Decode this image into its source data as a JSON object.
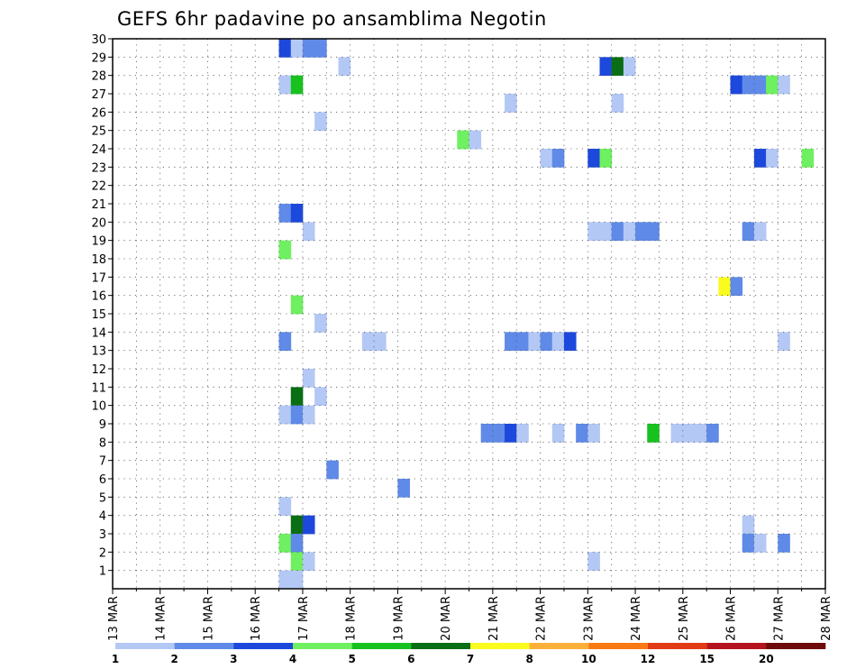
{
  "chart_data": {
    "type": "heatmap",
    "title": "GEFS 6hr padavine po ansamblima Negotin",
    "x_tick_labels": [
      "13 MAR",
      "14 MAR",
      "15 MAR",
      "16 MAR",
      "17 MAR",
      "18 MAR",
      "19 MAR",
      "20 MAR",
      "21 MAR",
      "22 MAR",
      "23 MAR",
      "24 MAR",
      "25 MAR",
      "26 MAR",
      "27 MAR",
      "28 MAR"
    ],
    "x_range_steps": [
      0,
      60
    ],
    "y_tick_labels": [
      "1",
      "2",
      "3",
      "4",
      "5",
      "6",
      "7",
      "8",
      "9",
      "10",
      "11",
      "12",
      "13",
      "14",
      "15",
      "16",
      "17",
      "18",
      "19",
      "20",
      "21",
      "22",
      "23",
      "24",
      "25",
      "26",
      "27",
      "28",
      "29",
      "30"
    ],
    "y_range": [
      0,
      30
    ],
    "grid": true,
    "legend": {
      "placement": "bottom",
      "labels": [
        "1",
        "2",
        "3",
        "4",
        "5",
        "6",
        "7",
        "8",
        "10",
        "12",
        "15",
        "20"
      ],
      "colors": [
        "#b4c8f6",
        "#5f8ae8",
        "#1d48dc",
        "#6ef060",
        "#17c21e",
        "#0a6e14",
        "#fbfb1e",
        "#fbb03a",
        "#f97a14",
        "#e23a14",
        "#b4141e",
        "#6e0a0a"
      ]
    },
    "cells": [
      {
        "m": 29,
        "s": 14,
        "l": 3
      },
      {
        "m": 29,
        "s": 15,
        "l": 1
      },
      {
        "m": 29,
        "s": 16,
        "l": 2
      },
      {
        "m": 29,
        "s": 17,
        "l": 2
      },
      {
        "m": 28,
        "s": 19,
        "l": 1
      },
      {
        "m": 28,
        "s": 41,
        "l": 3
      },
      {
        "m": 28,
        "s": 42,
        "l": 6
      },
      {
        "m": 28,
        "s": 43,
        "l": 1
      },
      {
        "m": 27,
        "s": 14,
        "l": 1
      },
      {
        "m": 27,
        "s": 15,
        "l": 5
      },
      {
        "m": 27,
        "s": 52,
        "l": 3
      },
      {
        "m": 27,
        "s": 53,
        "l": 2
      },
      {
        "m": 27,
        "s": 54,
        "l": 2
      },
      {
        "m": 27,
        "s": 55,
        "l": 4
      },
      {
        "m": 27,
        "s": 56,
        "l": 1
      },
      {
        "m": 26,
        "s": 33,
        "l": 1
      },
      {
        "m": 26,
        "s": 42,
        "l": 1
      },
      {
        "m": 25,
        "s": 17,
        "l": 1
      },
      {
        "m": 24,
        "s": 29,
        "l": 4
      },
      {
        "m": 24,
        "s": 30,
        "l": 1
      },
      {
        "m": 23,
        "s": 36,
        "l": 1
      },
      {
        "m": 23,
        "s": 37,
        "l": 2
      },
      {
        "m": 23,
        "s": 40,
        "l": 3
      },
      {
        "m": 23,
        "s": 41,
        "l": 4
      },
      {
        "m": 23,
        "s": 54,
        "l": 3
      },
      {
        "m": 23,
        "s": 55,
        "l": 1
      },
      {
        "m": 23,
        "s": 58,
        "l": 4
      },
      {
        "m": 20,
        "s": 14,
        "l": 2
      },
      {
        "m": 20,
        "s": 15,
        "l": 3
      },
      {
        "m": 19,
        "s": 16,
        "l": 1
      },
      {
        "m": 19,
        "s": 40,
        "l": 1
      },
      {
        "m": 19,
        "s": 41,
        "l": 1
      },
      {
        "m": 19,
        "s": 42,
        "l": 2
      },
      {
        "m": 19,
        "s": 43,
        "l": 1
      },
      {
        "m": 19,
        "s": 44,
        "l": 2
      },
      {
        "m": 19,
        "s": 45,
        "l": 2
      },
      {
        "m": 19,
        "s": 53,
        "l": 2
      },
      {
        "m": 19,
        "s": 54,
        "l": 1
      },
      {
        "m": 18,
        "s": 14,
        "l": 4
      },
      {
        "m": 16,
        "s": 51,
        "l": 7
      },
      {
        "m": 16,
        "s": 52,
        "l": 2
      },
      {
        "m": 15,
        "s": 15,
        "l": 4
      },
      {
        "m": 14,
        "s": 17,
        "l": 1
      },
      {
        "m": 13,
        "s": 14,
        "l": 2
      },
      {
        "m": 13,
        "s": 21,
        "l": 1
      },
      {
        "m": 13,
        "s": 22,
        "l": 1
      },
      {
        "m": 13,
        "s": 33,
        "l": 2
      },
      {
        "m": 13,
        "s": 34,
        "l": 2
      },
      {
        "m": 13,
        "s": 35,
        "l": 1
      },
      {
        "m": 13,
        "s": 36,
        "l": 2
      },
      {
        "m": 13,
        "s": 37,
        "l": 1
      },
      {
        "m": 13,
        "s": 38,
        "l": 3
      },
      {
        "m": 13,
        "s": 56,
        "l": 1
      },
      {
        "m": 11,
        "s": 16,
        "l": 1
      },
      {
        "m": 10,
        "s": 15,
        "l": 6
      },
      {
        "m": 10,
        "s": 17,
        "l": 1
      },
      {
        "m": 9,
        "s": 14,
        "l": 1
      },
      {
        "m": 9,
        "s": 15,
        "l": 2
      },
      {
        "m": 9,
        "s": 16,
        "l": 1
      },
      {
        "m": 8,
        "s": 31,
        "l": 2
      },
      {
        "m": 8,
        "s": 32,
        "l": 2
      },
      {
        "m": 8,
        "s": 33,
        "l": 3
      },
      {
        "m": 8,
        "s": 34,
        "l": 1
      },
      {
        "m": 8,
        "s": 37,
        "l": 1
      },
      {
        "m": 8,
        "s": 39,
        "l": 2
      },
      {
        "m": 8,
        "s": 40,
        "l": 1
      },
      {
        "m": 8,
        "s": 45,
        "l": 5
      },
      {
        "m": 8,
        "s": 47,
        "l": 1
      },
      {
        "m": 8,
        "s": 48,
        "l": 1
      },
      {
        "m": 8,
        "s": 49,
        "l": 1
      },
      {
        "m": 8,
        "s": 50,
        "l": 2
      },
      {
        "m": 6,
        "s": 18,
        "l": 2
      },
      {
        "m": 5,
        "s": 24,
        "l": 2
      },
      {
        "m": 4,
        "s": 14,
        "l": 1
      },
      {
        "m": 3,
        "s": 15,
        "l": 6
      },
      {
        "m": 3,
        "s": 16,
        "l": 3
      },
      {
        "m": 3,
        "s": 53,
        "l": 1
      },
      {
        "m": 2,
        "s": 14,
        "l": 4
      },
      {
        "m": 2,
        "s": 15,
        "l": 2
      },
      {
        "m": 2,
        "s": 53,
        "l": 2
      },
      {
        "m": 2,
        "s": 54,
        "l": 1
      },
      {
        "m": 2,
        "s": 56,
        "l": 2
      },
      {
        "m": 1,
        "s": 15,
        "l": 4
      },
      {
        "m": 1,
        "s": 16,
        "l": 1
      },
      {
        "m": 1,
        "s": 40,
        "l": 1
      },
      {
        "m": 0,
        "s": 14,
        "l": 1
      },
      {
        "m": 0,
        "s": 15,
        "l": 1
      }
    ]
  }
}
